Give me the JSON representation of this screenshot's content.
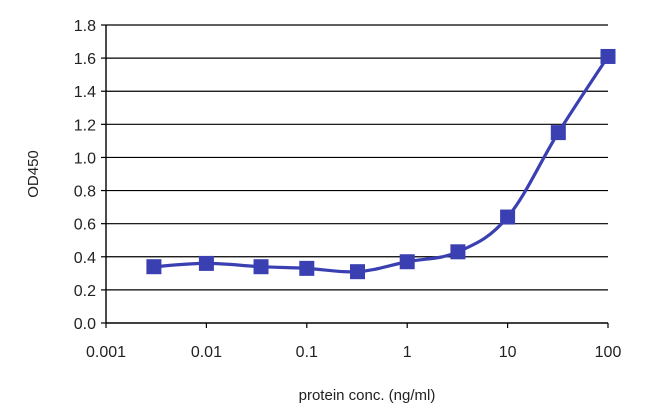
{
  "chart_data": {
    "type": "line",
    "title": "",
    "xlabel": "protein conc. (ng/ml)",
    "ylabel": "OD450",
    "x_scale": "log",
    "xlim": [
      0.001,
      100
    ],
    "ylim": [
      0.0,
      1.8
    ],
    "x_ticks": [
      0.001,
      0.01,
      0.1,
      1,
      10,
      100
    ],
    "x_tick_labels": [
      "0.001",
      "0.01",
      "0.1",
      "1",
      "10",
      "100"
    ],
    "y_ticks": [
      0.0,
      0.2,
      0.4,
      0.6,
      0.8,
      1.0,
      1.2,
      1.4,
      1.6,
      1.8
    ],
    "y_tick_labels": [
      "0.0",
      "0.2",
      "0.4",
      "0.6",
      "0.8",
      "1.0",
      "1.2",
      "1.4",
      "1.6",
      "1.8"
    ],
    "grid": "horizontal",
    "legend": "none",
    "series": [
      {
        "x": [
          0.003,
          0.01,
          0.035,
          0.1,
          0.32,
          1,
          3.2,
          10,
          32,
          100
        ],
        "y": [
          0.34,
          0.36,
          0.34,
          0.33,
          0.31,
          0.37,
          0.43,
          0.64,
          1.15,
          1.61
        ],
        "marker": "square",
        "color": "#3a3fb2"
      }
    ]
  },
  "colors": {
    "series": "#3a3fb2",
    "grid": "#000000",
    "axis": "#000000",
    "text": "#222222"
  }
}
